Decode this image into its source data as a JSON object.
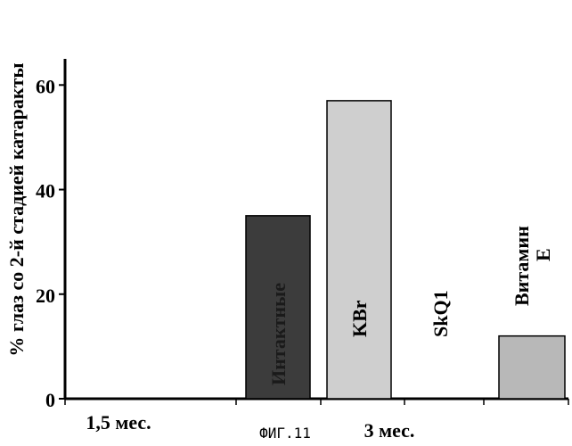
{
  "chart_data": {
    "type": "bar",
    "ylabel": "% глаз со 2-й стадией катаракты",
    "ylim": [
      0,
      65
    ],
    "yticks": [
      0,
      20,
      40,
      60
    ],
    "groups": [
      {
        "label": "1,5 мес.",
        "bars": [
          {
            "value": 0,
            "label": ""
          }
        ]
      },
      {
        "label": "3 мес.",
        "bars": [
          {
            "value": 35,
            "label": "Интактные",
            "color": "#3c3c3c"
          },
          {
            "value": 57,
            "label": "KBr",
            "color": "#cfcfcf"
          },
          {
            "value": 0,
            "label": "SkQ1",
            "color": "#bdbdbd"
          },
          {
            "value": 12,
            "label": "Витамин Е",
            "color": "#b8b8b8"
          }
        ]
      }
    ],
    "grid": false
  },
  "caption": "ФИГ.11"
}
